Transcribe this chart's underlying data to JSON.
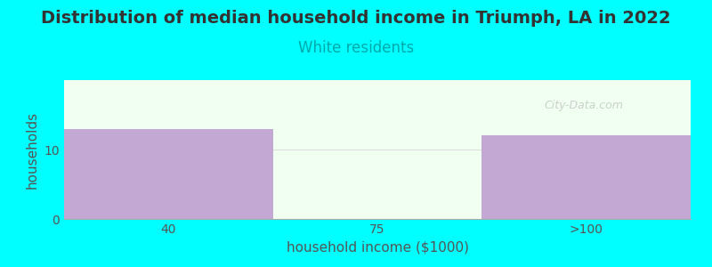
{
  "title": "Distribution of median household income in Triumph, LA in 2022",
  "subtitle": "White residents",
  "xlabel": "household income ($1000)",
  "ylabel": "households",
  "background_color": "#00FFFF",
  "plot_bg_color": "#F0FFF0",
  "bar_color": "#C4A8D4",
  "categories": [
    "40",
    "75",
    ">100"
  ],
  "bar_values": [
    13,
    0,
    12
  ],
  "ylim": [
    0,
    20
  ],
  "yticks": [
    0,
    10
  ],
  "title_fontsize": 14,
  "subtitle_fontsize": 12,
  "subtitle_color": "#00AAAA",
  "axis_label_fontsize": 11,
  "tick_fontsize": 10,
  "watermark": "City-Data.com"
}
